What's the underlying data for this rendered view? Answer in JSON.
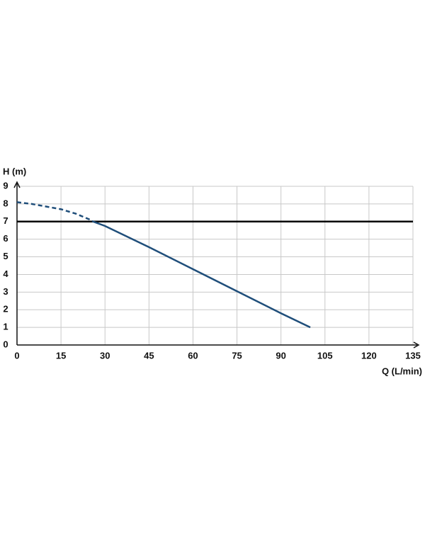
{
  "chart_data": {
    "type": "line",
    "y_label": "H (m)",
    "x_label": "Q (L/min)",
    "series": [
      {
        "color": "#1f4e7a",
        "line_style": "dashed",
        "x": [
          0,
          5,
          10,
          15,
          20,
          25,
          26
        ],
        "values": [
          8.1,
          8.0,
          7.85,
          7.7,
          7.45,
          7.1,
          7.0
        ]
      },
      {
        "color": "#1f4e7a",
        "line_style": "solid",
        "x": [
          26,
          30,
          45,
          60,
          75,
          90,
          100
        ],
        "values": [
          7.0,
          6.75,
          5.55,
          4.3,
          3.05,
          1.8,
          1.0
        ]
      }
    ],
    "reference_line": {
      "value": 7,
      "color": "#000000"
    },
    "xlim": [
      0,
      135
    ],
    "xticks": [
      0,
      15,
      30,
      45,
      60,
      75,
      90,
      105,
      120,
      135
    ],
    "ylim": [
      0,
      9
    ],
    "yticks": [
      0,
      1,
      2,
      3,
      4,
      5,
      6,
      7,
      8,
      9
    ],
    "grid": true
  }
}
